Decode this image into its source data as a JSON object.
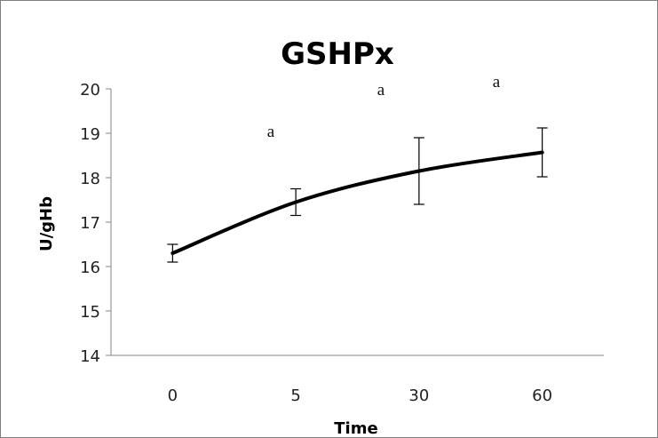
{
  "chart_data": {
    "type": "line",
    "title": "GSHPx",
    "xlabel": "Time",
    "ylabel": "U/gHb",
    "categories": [
      "0",
      "5",
      "30",
      "60"
    ],
    "series": [
      {
        "values": [
          16.3,
          17.45,
          18.15,
          18.57
        ],
        "error": [
          0.2,
          0.3,
          0.75,
          0.55
        ],
        "color": "#000000"
      }
    ],
    "annotations": [
      "a",
      "a",
      "a"
    ],
    "ylim": [
      14,
      20
    ],
    "yticks": [
      "20",
      "19",
      "18",
      "17",
      "16",
      "15",
      "14"
    ],
    "grid": false,
    "legend": "none"
  }
}
